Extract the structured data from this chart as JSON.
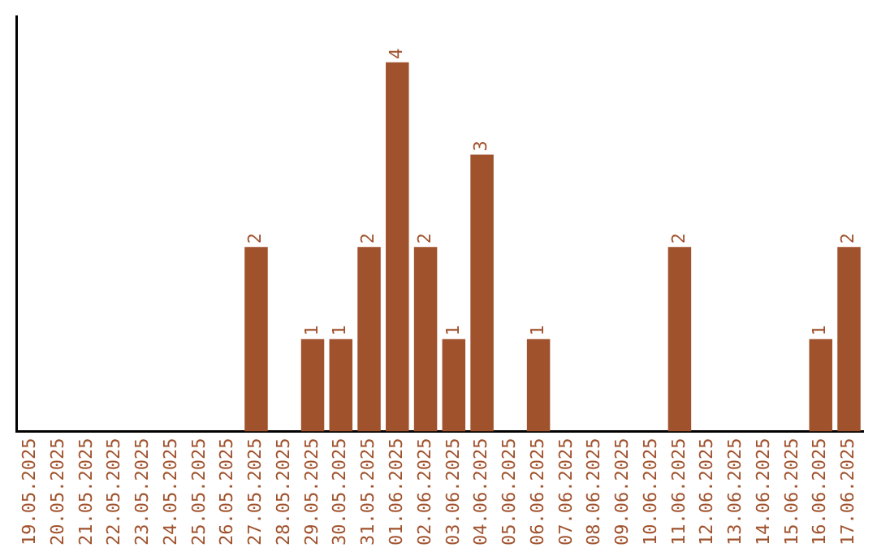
{
  "chart_data": {
    "type": "bar",
    "categories": [
      "19.05.2025",
      "20.05.2025",
      "21.05.2025",
      "22.05.2025",
      "23.05.2025",
      "24.05.2025",
      "25.05.2025",
      "26.05.2025",
      "27.05.2025",
      "28.05.2025",
      "29.05.2025",
      "30.05.2025",
      "31.05.2025",
      "01.06.2025",
      "02.06.2025",
      "03.06.2025",
      "04.06.2025",
      "05.06.2025",
      "06.06.2025",
      "07.06.2025",
      "08.06.2025",
      "09.06.2025",
      "10.06.2025",
      "11.06.2025",
      "12.06.2025",
      "13.06.2025",
      "14.06.2025",
      "15.06.2025",
      "16.06.2025",
      "17.06.2025"
    ],
    "values": [
      0,
      0,
      0,
      0,
      0,
      0,
      0,
      0,
      2,
      0,
      1,
      1,
      2,
      4,
      2,
      1,
      3,
      0,
      1,
      0,
      0,
      0,
      0,
      2,
      0,
      0,
      0,
      0,
      1,
      2
    ],
    "value_labels": [
      null,
      null,
      null,
      null,
      null,
      null,
      null,
      null,
      "2",
      null,
      "1",
      "1",
      "2",
      "4",
      "2",
      "1",
      "3",
      null,
      "1",
      null,
      null,
      null,
      null,
      "2",
      null,
      null,
      null,
      null,
      "1",
      "2"
    ],
    "color": "#a0522d",
    "grid": false,
    "legend": false,
    "tick_labels": "x"
  }
}
